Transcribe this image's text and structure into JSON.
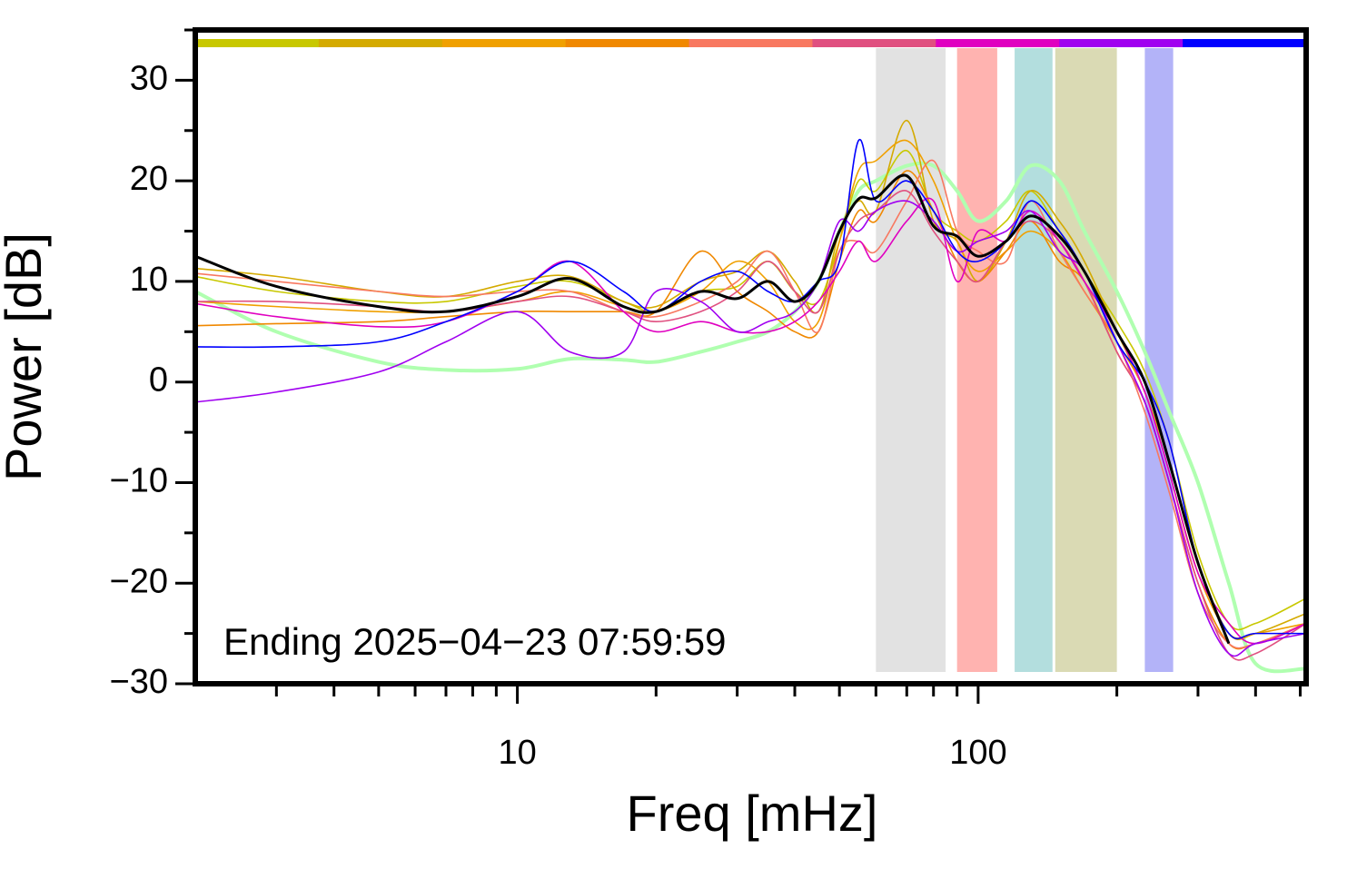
{
  "chart_data": {
    "type": "line",
    "xlabel": "Freq [mHz]",
    "ylabel": "Power [dB]",
    "annotation": "Ending 2025−04−23 07:59:59",
    "xscale": "log",
    "xlim": [
      2,
      515
    ],
    "ylim": [
      -30,
      35
    ],
    "xticks": [
      10,
      100
    ],
    "xminorticks": [
      3,
      4,
      5,
      6,
      7,
      8,
      9,
      20,
      30,
      40,
      50,
      60,
      70,
      80,
      90,
      200,
      300,
      400,
      500
    ],
    "yticks": [
      {
        "value": -30,
        "label": "−30"
      },
      {
        "value": -20,
        "label": "−20"
      },
      {
        "value": -10,
        "label": "−10"
      },
      0,
      10,
      20,
      30
    ],
    "yminorticks": [
      -25,
      -15,
      -5,
      5,
      15,
      25,
      35
    ],
    "bands": [
      {
        "x": [
          60,
          85
        ],
        "color": "#e2e2e2"
      },
      {
        "x": [
          90,
          110
        ],
        "color": "#ffb3b0"
      },
      {
        "x": [
          120,
          145
        ],
        "color": "#b3dede"
      },
      {
        "x": [
          147,
          200
        ],
        "color": "#dadab4"
      },
      {
        "x": [
          230,
          265
        ],
        "color": "#b3b3f8"
      }
    ],
    "x": [
      2,
      3,
      5,
      7,
      10,
      13,
      17,
      20,
      25,
      30,
      35,
      40,
      45,
      50,
      55,
      60,
      70,
      80,
      90,
      100,
      115,
      130,
      150,
      170,
      200,
      230,
      260,
      300,
      350,
      400,
      515
    ],
    "series": [
      {
        "color": "#b0ffb0",
        "width": 4,
        "values": [
          9,
          5,
          2,
          1.2,
          1.3,
          2.3,
          2.2,
          2,
          3,
          4,
          5,
          7,
          10,
          15,
          19,
          20,
          21.5,
          21.5,
          19,
          16,
          18,
          21.5,
          20,
          15,
          9,
          3,
          -3,
          -10,
          -20,
          -28,
          -28.5
        ]
      },
      {
        "color": "#c8c800",
        "width": 1.6,
        "values": [
          10.5,
          9,
          8,
          8,
          9.5,
          10,
          8,
          7,
          9,
          9.5,
          12,
          9,
          8,
          14,
          20,
          19,
          23,
          17,
          15,
          14,
          16,
          19,
          15,
          11,
          6,
          1,
          -6,
          -17,
          -24,
          -24,
          -21.5
        ]
      },
      {
        "color": "#d4aa00",
        "width": 1.6,
        "values": [
          11.3,
          10.5,
          9,
          8.5,
          10,
          10.5,
          8,
          7.5,
          10,
          11,
          13,
          10,
          7,
          15,
          18,
          17,
          26,
          16,
          14,
          10,
          14,
          19,
          16,
          12,
          5,
          -1,
          -8,
          -18,
          -25,
          -25,
          -23
        ]
      },
      {
        "color": "#f0a000",
        "width": 1.6,
        "values": [
          8,
          7.5,
          7,
          7,
          8,
          9,
          7.5,
          7,
          9,
          12,
          10,
          6,
          6,
          14,
          21,
          22,
          24,
          20,
          14,
          11,
          13,
          15,
          13,
          9,
          4,
          -1,
          -9,
          -19,
          -25,
          -25,
          -24
        ]
      },
      {
        "color": "#f08800",
        "width": 1.6,
        "values": [
          5.6,
          5.8,
          6,
          6.5,
          7,
          7,
          7,
          7,
          13,
          9,
          7,
          5,
          5,
          12,
          17,
          16,
          21,
          17,
          12,
          10,
          13,
          16,
          12,
          10,
          3,
          -2,
          -10,
          -20,
          -26,
          -26,
          -24
        ]
      },
      {
        "color": "#f87860",
        "width": 1.6,
        "values": [
          10.8,
          10,
          9,
          8.5,
          9,
          9,
          7,
          6.5,
          8,
          10,
          13,
          9,
          5,
          13,
          14,
          13,
          18,
          22,
          15,
          13,
          12,
          18,
          13,
          9,
          4,
          -3,
          -11,
          -21,
          -26,
          -26,
          -24
        ]
      },
      {
        "color": "#e05080",
        "width": 1.6,
        "values": [
          8,
          8,
          7.5,
          7,
          8,
          8.5,
          7,
          6,
          7,
          9,
          12,
          9,
          7,
          13,
          16,
          17,
          19,
          15,
          12,
          10,
          14,
          16,
          14,
          10,
          3,
          -2,
          -10,
          -20,
          -27,
          -27,
          -24
        ]
      },
      {
        "color": "#e000c0",
        "width": 1.6,
        "values": [
          7.8,
          6.5,
          5.5,
          6,
          9,
          12,
          7,
          5,
          6,
          5,
          5,
          6,
          8,
          11,
          14,
          12,
          16,
          18,
          10,
          15,
          14,
          17,
          14,
          10,
          5,
          -1,
          -9,
          -19,
          -24,
          -26,
          -24
        ]
      },
      {
        "color": "#a000f0",
        "width": 1.6,
        "values": [
          -2,
          -1,
          1,
          4,
          7,
          3,
          3,
          9,
          8,
          5,
          6,
          7,
          10,
          16,
          15,
          17,
          18,
          16,
          13,
          14,
          15,
          17,
          13,
          11,
          4,
          -2,
          -10,
          -21,
          -27,
          -26,
          -25
        ]
      },
      {
        "color": "#0000ff",
        "width": 1.6,
        "values": [
          3.5,
          3.5,
          4,
          6,
          9,
          12,
          9,
          7,
          10,
          11,
          9,
          8,
          10,
          12,
          24,
          18,
          20,
          17,
          13,
          12,
          14,
          18,
          15,
          11,
          4,
          0,
          -6,
          -18,
          -25,
          -25,
          -25
        ]
      },
      {
        "color": "#000000",
        "width": 3,
        "values": [
          12.5,
          9.5,
          7.5,
          7,
          8.5,
          10.3,
          7.5,
          7,
          9,
          8.3,
          10,
          8,
          10,
          15,
          18.2,
          18.3,
          20.5,
          15.5,
          14.5,
          12.5,
          14,
          16.5,
          14.5,
          11,
          5,
          0,
          -8,
          -18,
          -26,
          null,
          null
        ]
      }
    ],
    "color_key": [
      "#c8c800",
      "#d4aa00",
      "#f0a000",
      "#f08800",
      "#f87860",
      "#e05080",
      "#e000c0",
      "#a000f0",
      "#0000ff"
    ]
  }
}
